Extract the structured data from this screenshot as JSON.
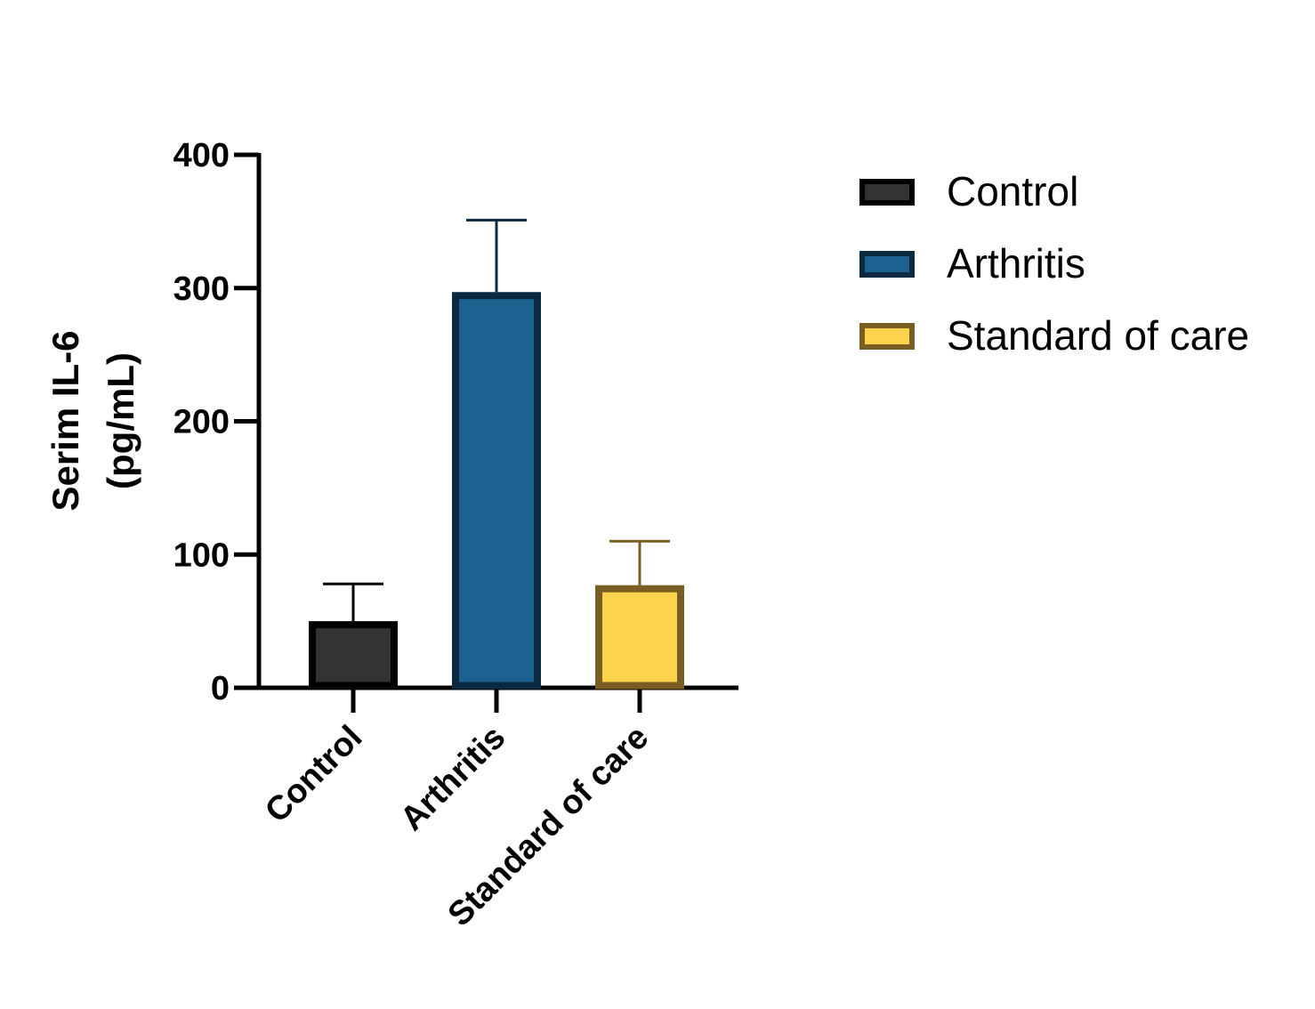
{
  "chart_data": {
    "type": "bar",
    "ylabel_line1": "Serim  IL-6",
    "ylabel_line2": "(pg/mL)",
    "ylim": [
      0,
      400
    ],
    "yticks": [
      "0",
      "100",
      "200",
      "300",
      "400"
    ],
    "categories": [
      "Control",
      "Arthritis",
      "Standard of care"
    ],
    "values": [
      50,
      297,
      77
    ],
    "errors": [
      28,
      54,
      33
    ],
    "colors": {
      "fill": [
        "#333333",
        "#1d6190",
        "#fcd34d"
      ],
      "stroke": [
        "#000000",
        "#0b2a40",
        "#7a5d22"
      ]
    },
    "legend_position": "right",
    "grid": false
  }
}
